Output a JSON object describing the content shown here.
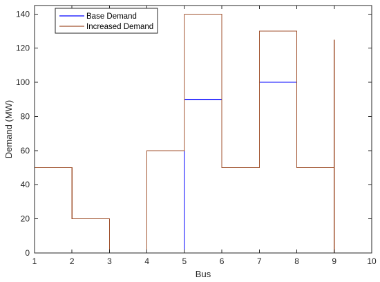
{
  "chart_data": {
    "type": "line",
    "title": "",
    "xlabel": "Bus",
    "ylabel": "Demand (MW)",
    "xlim": [
      1,
      10
    ],
    "ylim": [
      0,
      145
    ],
    "xticks": [
      1,
      2,
      3,
      4,
      5,
      6,
      7,
      8,
      9,
      10
    ],
    "yticks": [
      0,
      20,
      40,
      60,
      80,
      100,
      120,
      140
    ],
    "grid": false,
    "legend": "top-left",
    "step": "post",
    "series": [
      {
        "name": "Base Demand",
        "color": "#0000ff",
        "x": [
          1,
          2,
          3,
          4,
          5,
          6,
          7,
          8,
          9
        ],
        "y": [
          0,
          0,
          0,
          0,
          90,
          50,
          100,
          50,
          125
        ]
      },
      {
        "name": "Increased Demand",
        "color": "#a0522d",
        "x": [
          1,
          2,
          3,
          4,
          5,
          6,
          7,
          8,
          9
        ],
        "y": [
          50,
          20,
          0,
          60,
          140,
          50,
          130,
          50,
          125
        ]
      }
    ]
  }
}
